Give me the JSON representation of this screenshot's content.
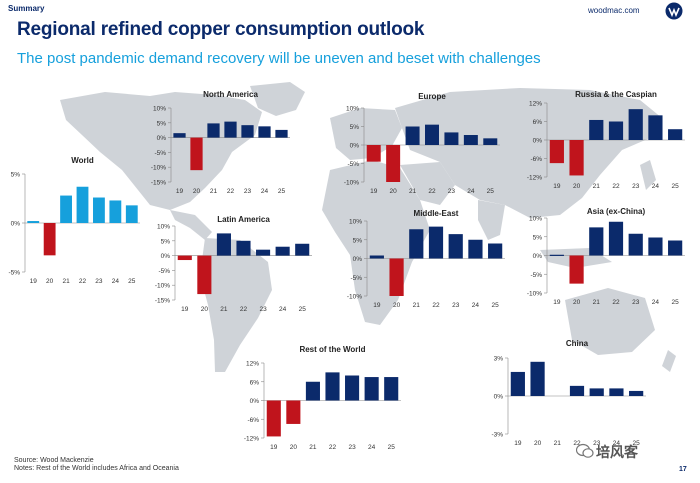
{
  "header": {
    "section_label": "Summary",
    "site": "woodmac.com",
    "title": "Regional refined copper consumption outlook",
    "subtitle": "The post pandemic demand recovery will be uneven and beset with challenges"
  },
  "footer": {
    "source": "Source: Wood Mackenzie",
    "notes": "Notes: Rest of the World includes Africa and Oceania",
    "page_number": "17",
    "watermark": "培风客"
  },
  "colors": {
    "navy": "#0b2a6b",
    "cyan": "#16a0dc",
    "red": "#c0141c",
    "map": "#cfd3d8"
  },
  "chart_data": [
    {
      "id": "world",
      "type": "bar",
      "title": "World",
      "categories": [
        "19",
        "20",
        "21",
        "22",
        "23",
        "24",
        "25"
      ],
      "values": [
        0.2,
        -3.3,
        2.8,
        3.7,
        2.6,
        2.3,
        1.8
      ],
      "ylim": [
        -5,
        5
      ],
      "yticks": [
        -5,
        0,
        5
      ],
      "ytick_labels": [
        "-5%",
        "0%",
        "5%"
      ],
      "pos_color": "#16a0dc",
      "neg_color": "#c0141c"
    },
    {
      "id": "north-america",
      "type": "bar",
      "title": "North America",
      "categories": [
        "19",
        "20",
        "21",
        "22",
        "23",
        "24",
        "25"
      ],
      "values": [
        1.5,
        -11,
        4.8,
        5.4,
        4.2,
        3.8,
        2.6
      ],
      "ylim": [
        -15,
        10
      ],
      "yticks": [
        -15,
        -10,
        -5,
        0,
        5,
        10
      ],
      "ytick_labels": [
        "-15%",
        "-10%",
        "-5%",
        "0%",
        "5%",
        "10%"
      ],
      "pos_color": "#0b2a6b",
      "neg_color": "#c0141c"
    },
    {
      "id": "europe",
      "type": "bar",
      "title": "Europe",
      "categories": [
        "19",
        "20",
        "21",
        "22",
        "23",
        "24",
        "25"
      ],
      "values": [
        -4.5,
        -10,
        5.0,
        5.5,
        3.4,
        2.7,
        1.8
      ],
      "ylim": [
        -10,
        10
      ],
      "yticks": [
        -10,
        -5,
        0,
        5,
        10
      ],
      "ytick_labels": [
        "-10%",
        "-5%",
        "0%",
        "5%",
        "10%"
      ],
      "pos_color": "#0b2a6b",
      "neg_color": "#c0141c"
    },
    {
      "id": "russia-caspian",
      "type": "bar",
      "title": "Russia & the Caspian",
      "categories": [
        "19",
        "20",
        "21",
        "22",
        "23",
        "24",
        "25"
      ],
      "values": [
        -7.5,
        -11.5,
        6.5,
        6.0,
        10,
        8.0,
        3.5
      ],
      "ylim": [
        -12,
        12
      ],
      "yticks": [
        -12,
        -6,
        0,
        6,
        12
      ],
      "ytick_labels": [
        "-12%",
        "-6%",
        "0%",
        "6%",
        "12%"
      ],
      "pos_color": "#0b2a6b",
      "neg_color": "#c0141c"
    },
    {
      "id": "latin-america",
      "type": "bar",
      "title": "Latin America",
      "categories": [
        "19",
        "20",
        "21",
        "22",
        "23",
        "24",
        "25"
      ],
      "values": [
        -1.5,
        -13,
        7.5,
        5.0,
        2.0,
        3.0,
        4.0
      ],
      "ylim": [
        -15,
        10
      ],
      "yticks": [
        -15,
        -10,
        -5,
        0,
        5,
        10
      ],
      "ytick_labels": [
        "-15%",
        "-10%",
        "-5%",
        "0%",
        "5%",
        "10%"
      ],
      "pos_color": "#0b2a6b",
      "neg_color": "#c0141c"
    },
    {
      "id": "middle-east",
      "type": "bar",
      "title": "Middle-East",
      "categories": [
        "19",
        "20",
        "21",
        "22",
        "23",
        "24",
        "25"
      ],
      "values": [
        0.8,
        -10,
        7.8,
        8.5,
        6.5,
        5.0,
        4.0
      ],
      "ylim": [
        -10,
        10
      ],
      "yticks": [
        -10,
        -5,
        0,
        5,
        10
      ],
      "ytick_labels": [
        "-10%",
        "-5%",
        "0%",
        "5%",
        "10%"
      ],
      "pos_color": "#0b2a6b",
      "neg_color": "#c0141c"
    },
    {
      "id": "asia-ex-china",
      "type": "bar",
      "title": "Asia (ex-China)",
      "categories": [
        "19",
        "20",
        "21",
        "22",
        "23",
        "24",
        "25"
      ],
      "values": [
        0.2,
        -7.5,
        7.5,
        9.0,
        5.8,
        4.8,
        4.0
      ],
      "ylim": [
        -10,
        10
      ],
      "yticks": [
        -10,
        -5,
        0,
        5,
        10
      ],
      "ytick_labels": [
        "-10%",
        "-5%",
        "0%",
        "5%",
        "10%"
      ],
      "pos_color": "#0b2a6b",
      "neg_color": "#c0141c"
    },
    {
      "id": "rest-of-world",
      "type": "bar",
      "title": "Rest of the World",
      "categories": [
        "19",
        "20",
        "21",
        "22",
        "23",
        "24",
        "25"
      ],
      "values": [
        -11.5,
        -7.5,
        6.0,
        9.0,
        8.0,
        7.5,
        7.5
      ],
      "ylim": [
        -12,
        12
      ],
      "yticks": [
        -12,
        -6,
        0,
        6,
        12
      ],
      "ytick_labels": [
        "-12%",
        "-6%",
        "0%",
        "6%",
        "12%"
      ],
      "pos_color": "#0b2a6b",
      "neg_color": "#c0141c"
    },
    {
      "id": "china",
      "type": "bar",
      "title": "China",
      "categories": [
        "19",
        "20",
        "21",
        "22",
        "23",
        "24",
        "25"
      ],
      "values": [
        1.9,
        2.7,
        0.0,
        0.8,
        0.6,
        0.6,
        0.4
      ],
      "ylim": [
        -3,
        3
      ],
      "yticks": [
        -3,
        0,
        3
      ],
      "ytick_labels": [
        "-3%",
        "0%",
        "3%"
      ],
      "pos_color": "#0b2a6b",
      "neg_color": "#c0141c"
    }
  ]
}
